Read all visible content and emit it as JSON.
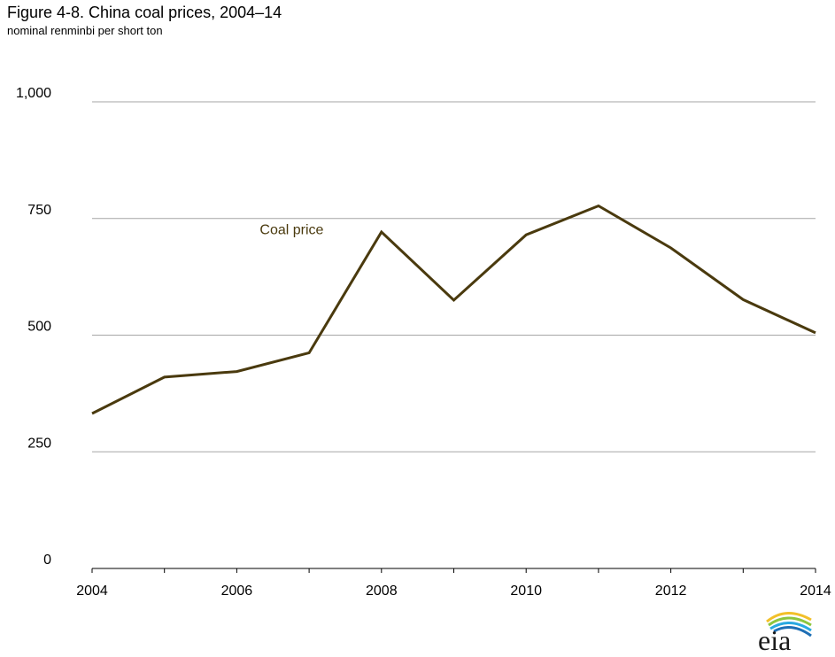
{
  "title": "Figure 4-8. China coal prices, 2004–14",
  "subtitle": "nominal renminbi per short ton",
  "logo_text": "eia",
  "chart_data": {
    "type": "line",
    "x": [
      2004,
      2005,
      2006,
      2007,
      2008,
      2009,
      2010,
      2011,
      2012,
      2013,
      2014
    ],
    "series": [
      {
        "name": "Coal price",
        "color": "#4a3a0e",
        "values": [
          332,
          410,
          422,
          462,
          721,
          575,
          715,
          777,
          687,
          576,
          505
        ]
      }
    ],
    "xlim": [
      2004,
      2014
    ],
    "ylim": [
      0,
      1000
    ],
    "x_ticks": [
      2004,
      2006,
      2008,
      2010,
      2012,
      2014
    ],
    "y_ticks": [
      0,
      250,
      500,
      750,
      1000
    ],
    "y_tick_labels": [
      "0",
      "250",
      "500",
      "750",
      "1,000"
    ],
    "grid": true,
    "colors": {
      "line": "#4a3a0e",
      "label": "#4a3a0e",
      "grid": "#a6a6a6",
      "axis": "#000000"
    }
  }
}
